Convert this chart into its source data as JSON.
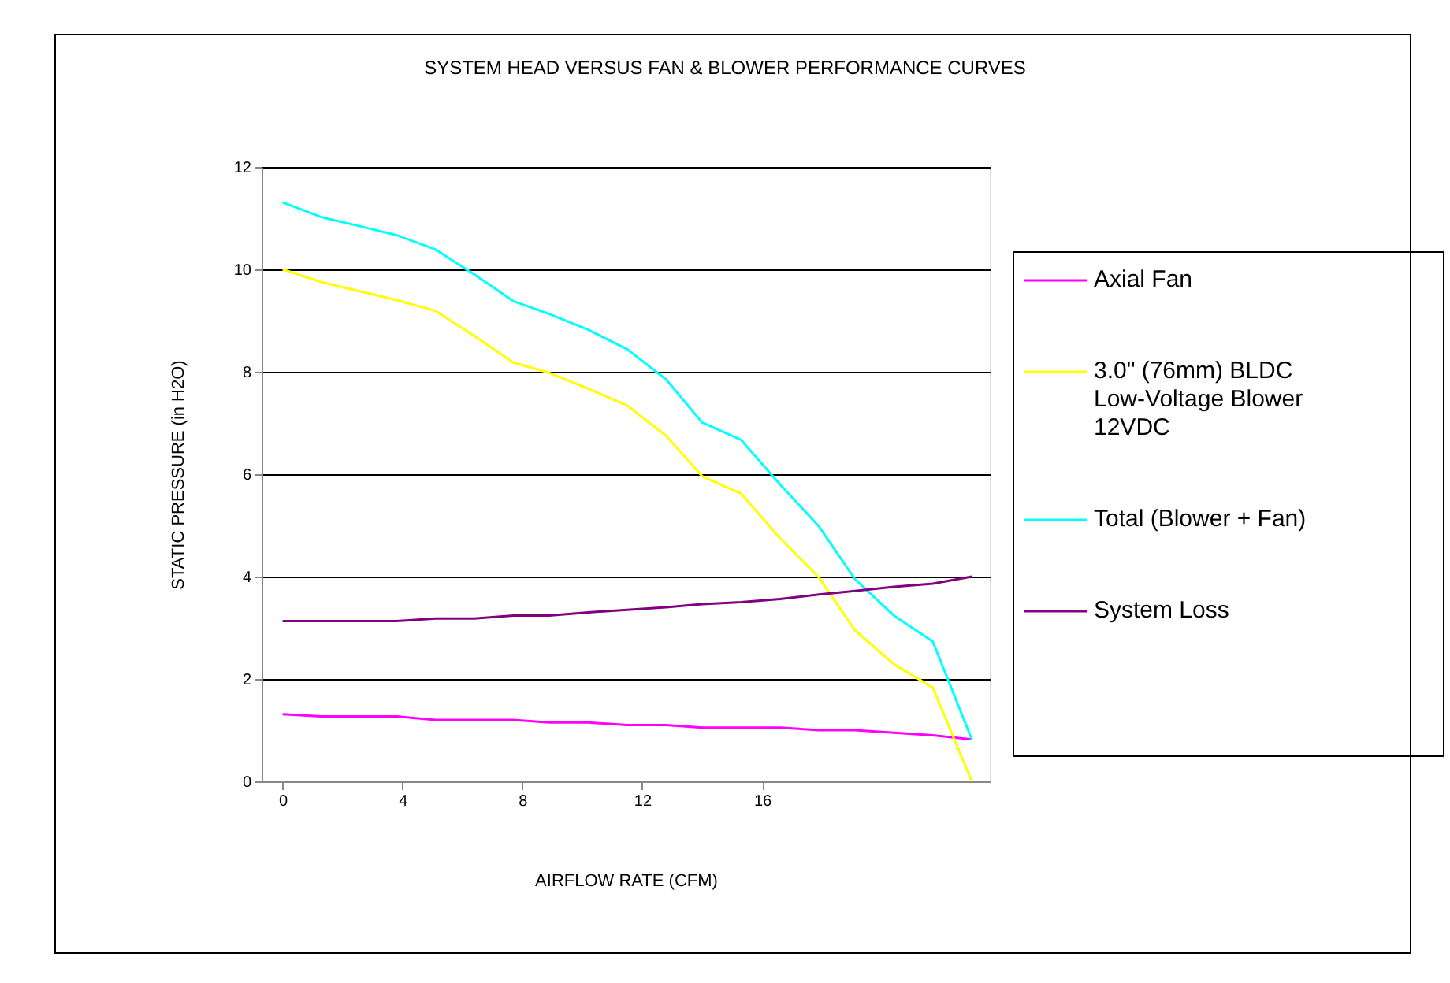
{
  "chart_data": {
    "type": "line",
    "title": "SYSTEM HEAD VERSUS FAN & BLOWER PERFORMANCE CURVES",
    "xlabel": "AIRFLOW RATE (CFM)",
    "ylabel": "STATIC PRESSURE (in H2O)",
    "x": [
      0,
      1.3,
      2.6,
      3.8,
      5.1,
      6.4,
      7.7,
      8.9,
      10.2,
      11.5,
      12.8,
      14.0,
      15.3,
      16.6,
      17.9,
      19.1,
      20.4,
      21.7,
      23.0
    ],
    "series": [
      {
        "name": "Axial Fan",
        "color": "#ff00ff",
        "values": [
          1.31,
          1.27,
          1.27,
          1.27,
          1.2,
          1.2,
          1.2,
          1.15,
          1.15,
          1.1,
          1.1,
          1.05,
          1.05,
          1.05,
          1.0,
          1.0,
          0.95,
          0.9,
          0.82
        ]
      },
      {
        "name": "3.0\" (76mm) BLDC Low-Voltage Blower 12VDC",
        "color": "#ffff00",
        "values": [
          10.0,
          9.75,
          9.57,
          9.4,
          9.19,
          8.7,
          8.18,
          7.98,
          7.67,
          7.34,
          6.75,
          5.96,
          5.62,
          4.75,
          3.98,
          2.95,
          2.29,
          1.83,
          0
        ]
      },
      {
        "name": "Total (Blower + Fan)",
        "color": "#00ffff",
        "values": [
          11.31,
          11.02,
          10.84,
          10.67,
          10.39,
          9.9,
          9.38,
          9.13,
          8.82,
          8.44,
          7.85,
          7.01,
          6.67,
          5.8,
          4.98,
          3.95,
          3.24,
          2.73,
          0.82
        ]
      },
      {
        "name": "System Loss",
        "color": "#800080",
        "values": [
          3.13,
          3.13,
          3.13,
          3.13,
          3.18,
          3.18,
          3.24,
          3.24,
          3.3,
          3.35,
          3.4,
          3.46,
          3.5,
          3.56,
          3.65,
          3.72,
          3.8,
          3.86,
          4.0
        ]
      }
    ],
    "xlim": [
      -0.7,
      23.6
    ],
    "xticks": [
      0,
      4,
      8,
      12,
      16
    ],
    "ylim": [
      0,
      12
    ],
    "yticks": [
      0,
      2,
      4,
      6,
      8,
      10,
      12
    ],
    "grid": "y",
    "legend": "right",
    "marker": "none",
    "line_style": "solid"
  }
}
